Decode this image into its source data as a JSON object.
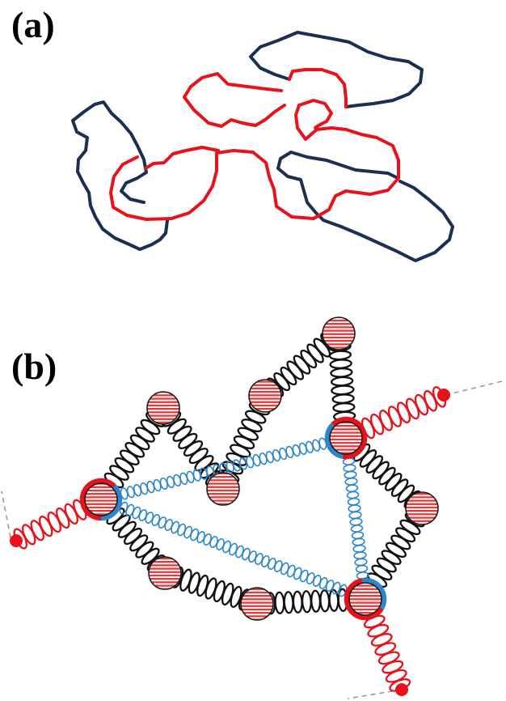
{
  "figure": {
    "panels": [
      {
        "label": "(a)"
      },
      {
        "label": "(b)"
      }
    ]
  },
  "colors": {
    "strand_navy": "#1b2f52",
    "strand_red": "#e8121c",
    "spring_black": "#111111",
    "spring_blue": "#2d86cc",
    "spring_red": "#e8121c",
    "bead_fill": "#e23a3a",
    "dashed_line": "#9a9a9a"
  }
}
